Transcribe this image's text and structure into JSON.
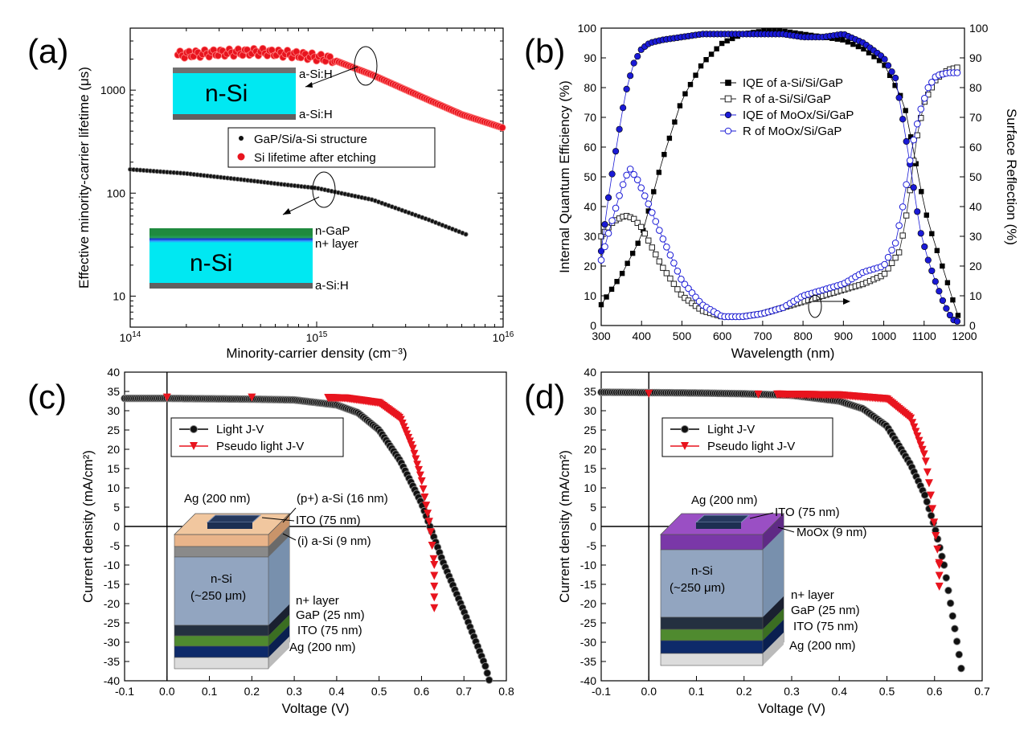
{
  "chart_data": [
    {
      "panel_label": "(a)",
      "type": "scatter",
      "xscale": "log",
      "yscale": "log",
      "xlabel": "Minority-carrier density (cm⁻³)",
      "ylabel": "Effective minority-carrier lifetime (μs)",
      "xlim": [
        100000000000000.0,
        1e+16
      ],
      "ylim": [
        5,
        4000
      ],
      "xticks": [
        {
          "v": 100000000000000.0,
          "b": "10",
          "e": "14"
        },
        {
          "v": 1000000000000000.0,
          "b": "10",
          "e": "15"
        },
        {
          "v": 1e+16,
          "b": "10",
          "e": "16"
        }
      ],
      "yticks": [
        {
          "v": 10,
          "t": "10"
        },
        {
          "v": 100,
          "t": "100"
        },
        {
          "v": 1000,
          "t": "1000"
        }
      ],
      "legend_position": "center-right",
      "series": [
        {
          "name": "GaP/Si/a-Si structure",
          "color": "#000000",
          "points": [
            [
              100000000000000.0,
              170
            ],
            [
              200000000000000.0,
              155
            ],
            [
              400000000000000.0,
              135
            ],
            [
              700000000000000.0,
              120
            ],
            [
              1000000000000000.0,
              112
            ],
            [
              2000000000000000.0,
              86
            ],
            [
              4000000000000000.0,
              55
            ],
            [
              6500000000000000.0,
              39
            ]
          ]
        },
        {
          "name": "Si lifetime after etching",
          "color": "#e8141e",
          "points": [
            [
              180000000000000.0,
              2200
            ],
            [
              300000000000000.0,
              2300
            ],
            [
              500000000000000.0,
              2350
            ],
            [
              800000000000000.0,
              2200
            ],
            [
              1200000000000000.0,
              2000
            ],
            [
              2000000000000000.0,
              1400
            ],
            [
              4000000000000000.0,
              800
            ],
            [
              6000000000000000.0,
              580
            ],
            [
              1e+16,
              430
            ]
          ]
        }
      ],
      "inset_top": {
        "main": "n-Si",
        "top": "a-Si:H",
        "bottom": "a-Si:H"
      },
      "inset_bottom": {
        "main": "n-Si",
        "labels": [
          "n-GaP",
          "n+ layer",
          "a-Si:H"
        ]
      }
    },
    {
      "panel_label": "(b)",
      "type": "line",
      "xlabel": "Wavelength (nm)",
      "ylabel": "Internal Quantum Efficiency (%)",
      "ylabel_right": "Surface Reflection (%)",
      "xlim": [
        300,
        1200
      ],
      "ylim": [
        0,
        100
      ],
      "xticks": [
        300,
        400,
        500,
        600,
        700,
        800,
        900,
        1000,
        1100,
        1200
      ],
      "yticks": [
        0,
        10,
        20,
        30,
        40,
        50,
        60,
        70,
        80,
        90,
        100
      ],
      "legend_position": "center",
      "series": [
        {
          "name": "IQE of a-Si/Si/GaP",
          "color": "#000000",
          "marker": "square-filled",
          "x": [
            300,
            350,
            400,
            450,
            500,
            550,
            600,
            650,
            700,
            750,
            800,
            850,
            900,
            950,
            1000,
            1050,
            1075,
            1100,
            1125,
            1150,
            1170,
            1190
          ],
          "y": [
            7,
            17,
            30,
            55,
            76,
            88,
            95,
            98,
            99,
            99,
            98,
            97,
            96,
            93,
            88,
            75,
            58,
            40,
            28,
            18,
            9,
            1
          ]
        },
        {
          "name": "R of a-Si/Si/GaP",
          "color": "#222222",
          "marker": "square-open",
          "x": [
            300,
            330,
            360,
            380,
            400,
            450,
            500,
            550,
            600,
            650,
            700,
            750,
            800,
            850,
            900,
            950,
            1000,
            1040,
            1060,
            1080,
            1100,
            1130,
            1160,
            1190
          ],
          "y": [
            30,
            35,
            37,
            36,
            33,
            20,
            10,
            5,
            3,
            3,
            4,
            6,
            8,
            10,
            12,
            14,
            17,
            25,
            40,
            62,
            75,
            83,
            86,
            87
          ]
        },
        {
          "name": "IQE of MoOx/Si/GaP",
          "color": "#1a1ad6",
          "marker": "circle-filled",
          "x": [
            300,
            320,
            340,
            360,
            380,
            400,
            420,
            450,
            500,
            550,
            600,
            650,
            700,
            750,
            800,
            850,
            900,
            950,
            1000,
            1030,
            1050,
            1070,
            1090,
            1110,
            1130,
            1150,
            1170,
            1190
          ],
          "y": [
            25,
            45,
            62,
            78,
            88,
            93,
            95,
            96,
            97,
            98,
            98,
            98,
            98,
            98,
            97,
            97,
            98,
            95,
            90,
            83,
            67,
            50,
            32,
            22,
            14,
            7,
            2,
            1
          ]
        },
        {
          "name": "R of MoOx/Si/GaP",
          "color": "#1a1ad6",
          "marker": "circle-open",
          "x": [
            300,
            320,
            350,
            370,
            390,
            420,
            450,
            500,
            550,
            600,
            650,
            700,
            750,
            800,
            850,
            900,
            950,
            1000,
            1030,
            1050,
            1070,
            1090,
            1110,
            1130,
            1160,
            1190
          ],
          "y": [
            22,
            32,
            46,
            53,
            49,
            40,
            30,
            15,
            7,
            3,
            3,
            4,
            6,
            10,
            12,
            14,
            18,
            20,
            28,
            42,
            60,
            72,
            80,
            84,
            85,
            85
          ]
        }
      ]
    },
    {
      "panel_label": "(c)",
      "type": "line",
      "xlabel": "Voltage (V)",
      "ylabel": "Current density (mA/cm²)",
      "xlim": [
        -0.1,
        0.8
      ],
      "ylim": [
        -40,
        40
      ],
      "xticks": [
        -0.1,
        0.0,
        0.1,
        0.2,
        0.3,
        0.4,
        0.5,
        0.6,
        0.7,
        0.8
      ],
      "yticks": [
        -40,
        -35,
        -30,
        -25,
        -20,
        -15,
        -10,
        -5,
        0,
        5,
        10,
        15,
        20,
        25,
        30,
        35,
        40
      ],
      "legend_position": "upper-left",
      "series": [
        {
          "name": "Light J-V",
          "color": "#000000",
          "marker": "circle",
          "x": [
            -0.1,
            0.0,
            0.1,
            0.2,
            0.3,
            0.4,
            0.45,
            0.5,
            0.55,
            0.6,
            0.62,
            0.65,
            0.7,
            0.75,
            0.76
          ],
          "y": [
            33.2,
            33.2,
            33.1,
            33,
            32.8,
            31.5,
            29.5,
            25,
            17,
            6,
            0,
            -9,
            -22,
            -36,
            -40
          ]
        },
        {
          "name": "Pseudo light J-V",
          "color": "#e8141e",
          "marker": "triangle-down",
          "x": [
            0.0,
            0.2,
            0.38,
            0.42,
            0.5,
            0.55,
            0.58,
            0.6,
            0.61,
            0.62,
            0.63,
            0.63
          ],
          "y": [
            33.4,
            33.4,
            33.3,
            33.2,
            32,
            28,
            20,
            12,
            6,
            0,
            -10,
            -24
          ]
        }
      ],
      "inset_labels": [
        "Ag (200 nm)",
        "(p+) a-Si (16 nm)",
        "ITO (75 nm)",
        "(i) a-Si (9 nm)",
        "n-Si",
        "(~250 μm)",
        "n+ layer",
        "GaP (25 nm)",
        "ITO (75 nm)",
        "Ag (200 nm)"
      ]
    },
    {
      "panel_label": "(d)",
      "type": "line",
      "xlabel": "Voltage (V)",
      "ylabel": "Current density (mA/cm²)",
      "xlim": [
        -0.1,
        0.7
      ],
      "ylim": [
        -40,
        40
      ],
      "xticks": [
        -0.1,
        0.0,
        0.1,
        0.2,
        0.3,
        0.4,
        0.5,
        0.6,
        0.7
      ],
      "yticks": [
        -40,
        -35,
        -30,
        -25,
        -20,
        -15,
        -10,
        -5,
        0,
        5,
        10,
        15,
        20,
        25,
        30,
        35,
        40
      ],
      "legend_position": "upper-left",
      "series": [
        {
          "name": "Light J-V",
          "color": "#000000",
          "marker": "circle",
          "x": [
            -0.1,
            0.0,
            0.1,
            0.2,
            0.3,
            0.4,
            0.45,
            0.5,
            0.55,
            0.58,
            0.6,
            0.62,
            0.65,
            0.66
          ],
          "y": [
            34.8,
            34.7,
            34.6,
            34.4,
            34,
            32.5,
            30.5,
            26,
            16,
            8,
            0,
            -10,
            -32,
            -40
          ]
        },
        {
          "name": "Pseudo light J-V",
          "color": "#e8141e",
          "marker": "triangle-down",
          "x": [
            0.0,
            0.23,
            0.27,
            0.4,
            0.5,
            0.55,
            0.58,
            0.59,
            0.6,
            0.61,
            0.61
          ],
          "y": [
            34.4,
            34.2,
            34.2,
            34,
            33,
            28,
            18,
            10,
            0,
            -10,
            -18
          ]
        }
      ],
      "inset_labels": [
        "Ag (200 nm)",
        "ITO (75 nm)",
        "MoOx (9 nm)",
        "n-Si",
        "(~250 μm)",
        "n+ layer",
        "GaP (25 nm)",
        "ITO (75 nm)",
        "Ag (200 nm)"
      ]
    }
  ]
}
